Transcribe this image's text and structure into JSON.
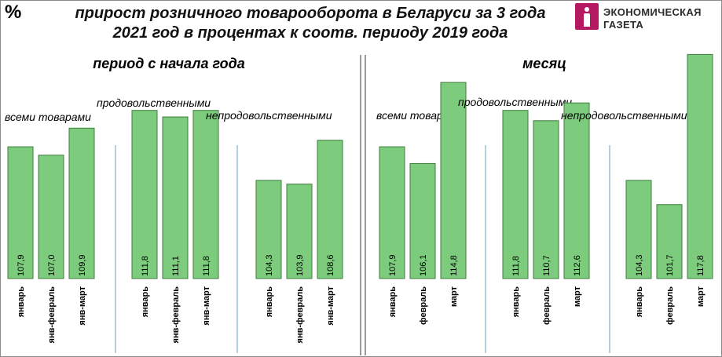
{
  "y_unit": "%",
  "title_line1": "прирост розничного товарооборота в Беларуси за 3 года",
  "title_line2": "2021 год в процентах к соотв. периоду 2019 года",
  "logo": {
    "line1": "ЭКОНОМИЧЕСКАЯ",
    "line2": "ГАЗЕТА",
    "color": "#b5195f"
  },
  "colors": {
    "bar_fill": "#7dcb7d",
    "bar_stroke": "#3e7d3e",
    "separator": "#6a9fbf"
  },
  "chart_data": [
    {
      "type": "bar",
      "title": "период с начала года",
      "groups": [
        {
          "label": "всеми товарами",
          "categories": [
            "январь",
            "янв-февраль",
            "янв-март"
          ],
          "values": [
            107.9,
            107.0,
            109.9
          ]
        },
        {
          "label": "продовольственными",
          "categories": [
            "январь",
            "янв-февраль",
            "янв-март"
          ],
          "values": [
            111.8,
            111.1,
            111.8
          ]
        },
        {
          "label": "непродовольственными",
          "categories": [
            "январь",
            "янв-февраль",
            "янв-март"
          ],
          "values": [
            104.3,
            103.9,
            108.6
          ]
        }
      ]
    },
    {
      "type": "bar",
      "title": "месяц",
      "groups": [
        {
          "label": "всеми товарами",
          "categories": [
            "январь",
            "февраль",
            "март"
          ],
          "values": [
            107.9,
            106.1,
            114.8
          ]
        },
        {
          "label": "продовольственными",
          "categories": [
            "январь",
            "февраль",
            "март"
          ],
          "values": [
            111.8,
            110.7,
            112.6
          ]
        },
        {
          "label": "непродовольственными",
          "categories": [
            "январь",
            "февраль",
            "март"
          ],
          "values": [
            104.3,
            101.7,
            117.8
          ]
        }
      ]
    }
  ]
}
